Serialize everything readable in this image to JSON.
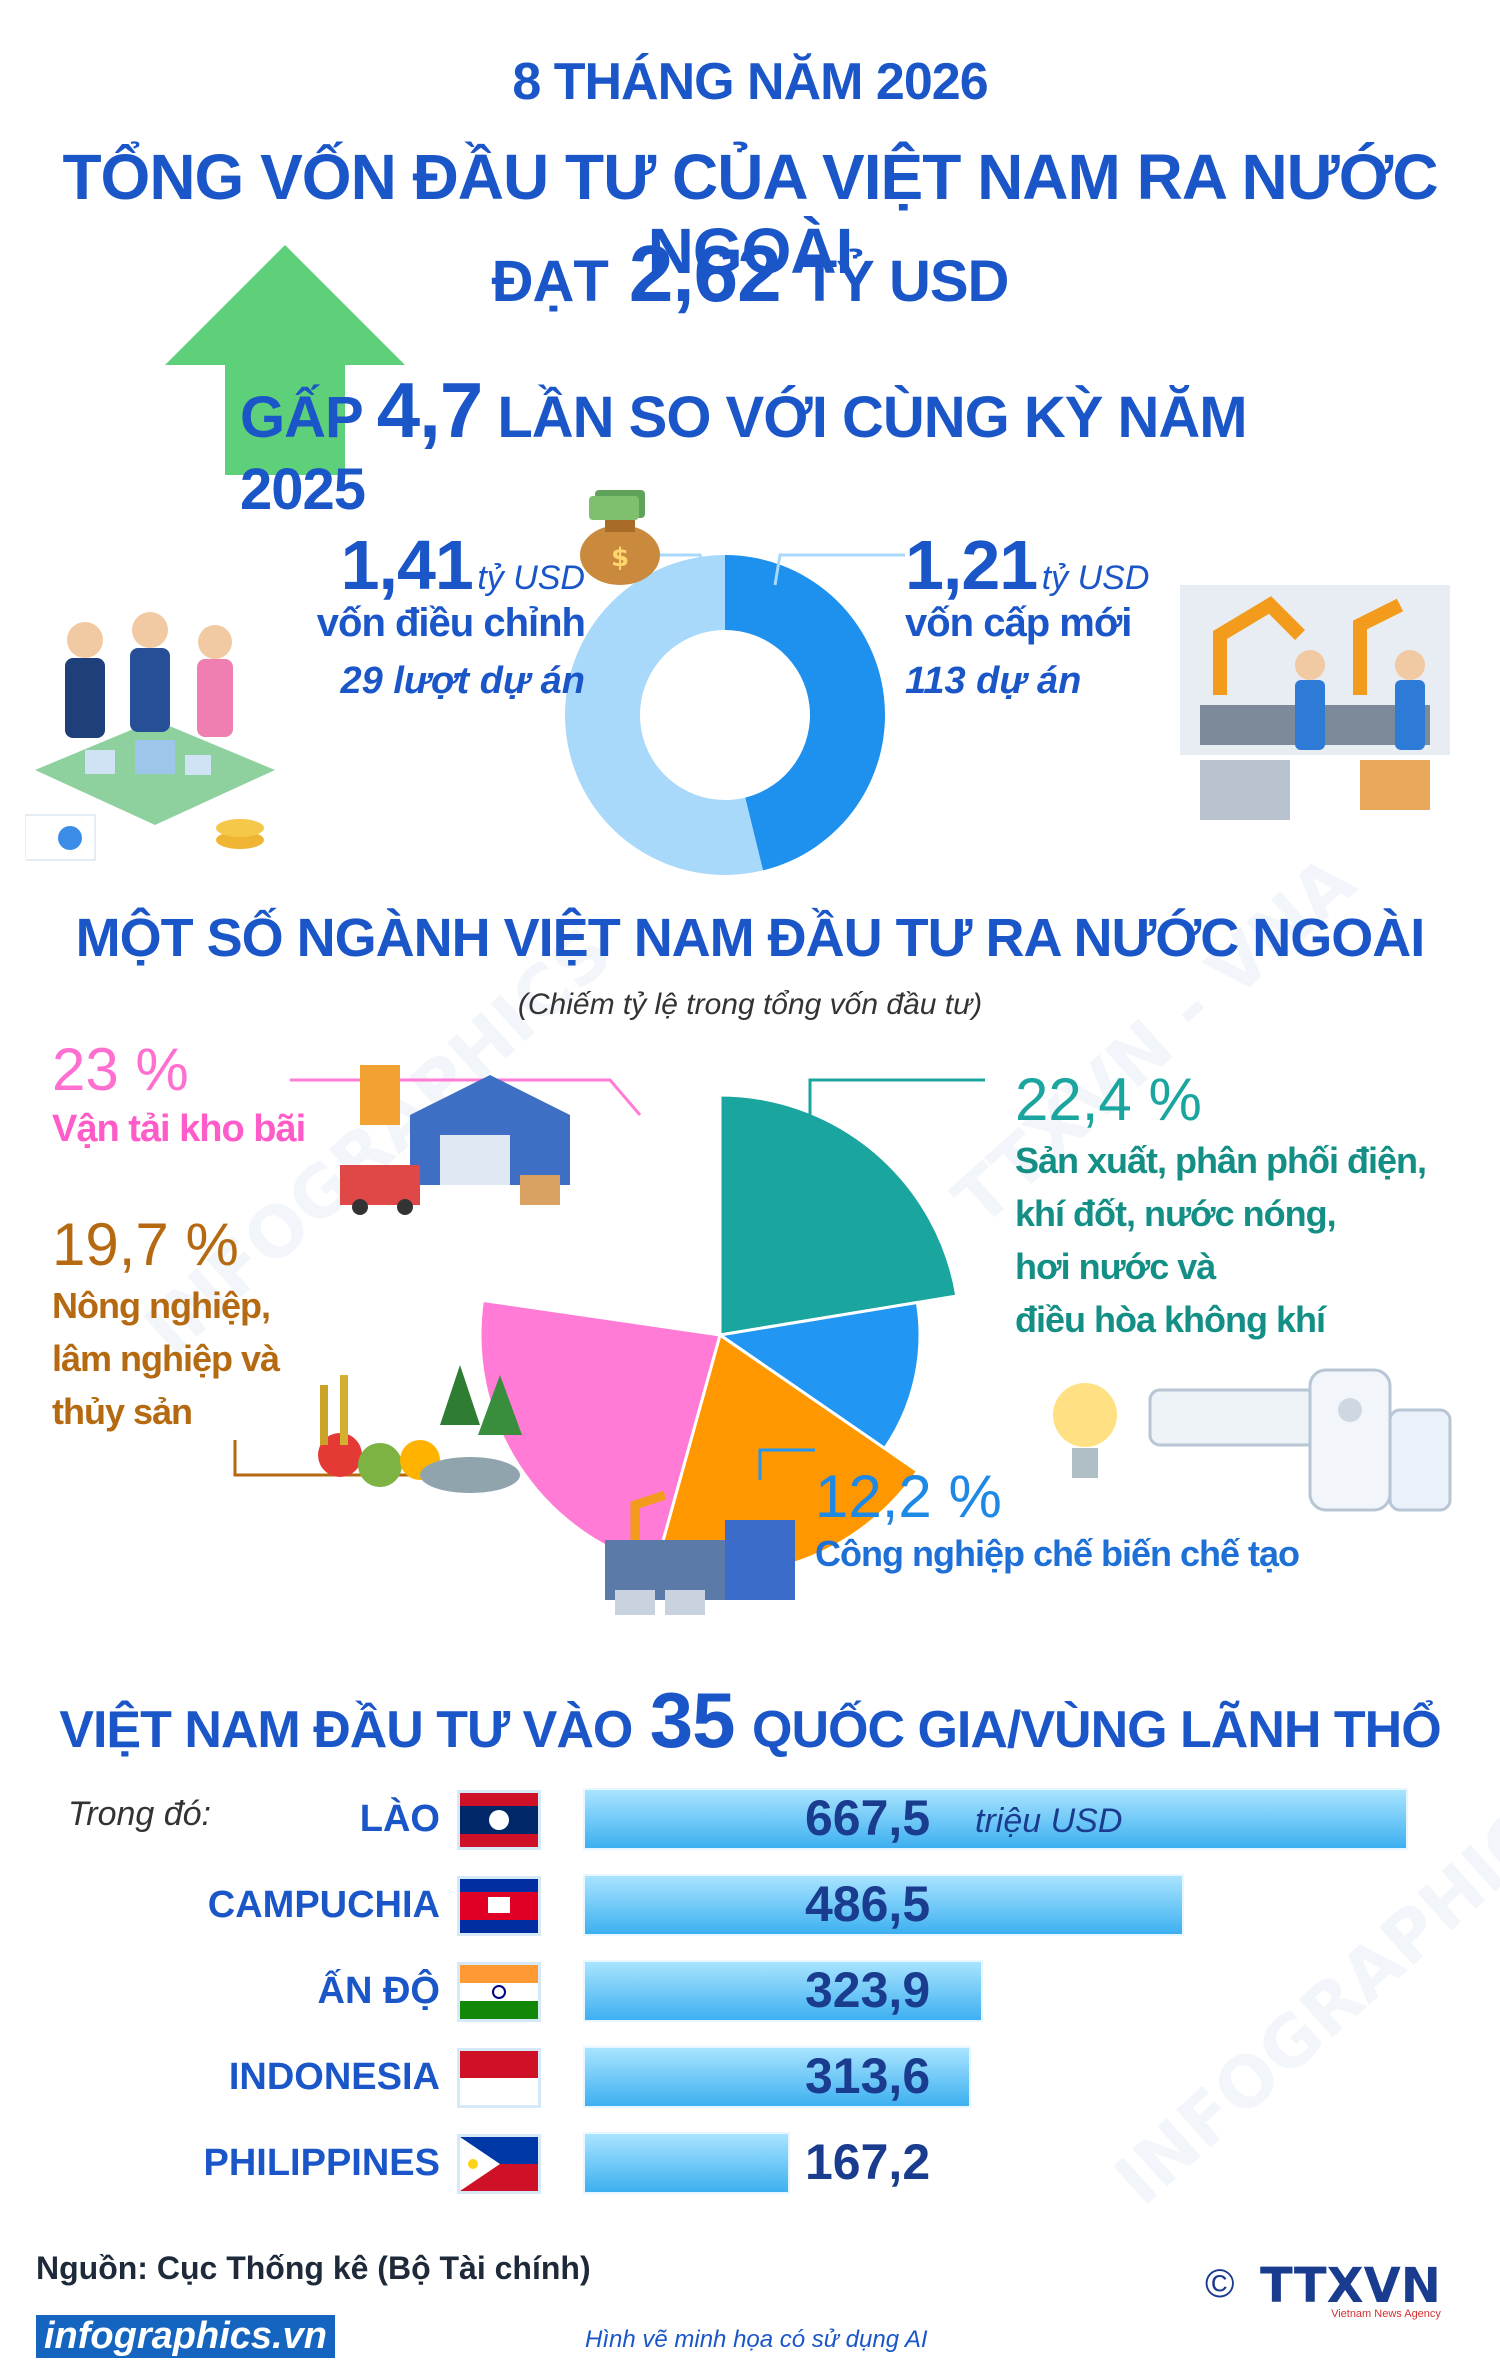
{
  "header": {
    "period": "8 THÁNG NĂM 2026",
    "headline": "TỔNG VỐN ĐẦU TƯ CỦA VIỆT NAM RA NƯỚC NGOÀI",
    "reach_prefix": "ĐẠT",
    "reach_value": "2,62",
    "reach_unit": "TỶ USD",
    "compare_prefix": "GẤP",
    "compare_value": "4,7",
    "compare_suffix": "LẦN SO VỚI CÙNG KỲ NĂM 2025"
  },
  "capital": {
    "left": {
      "value": "1,41",
      "unit": "tỷ USD",
      "label": "vốn điều chỉnh",
      "detail": "29 lượt dự án"
    },
    "right": {
      "value": "1,21",
      "unit": "tỷ USD",
      "label": "vốn cấp mới",
      "detail": "113 dự án"
    }
  },
  "sectors": {
    "title": "MỘT SỐ NGÀNH VIỆT NAM ĐẦU TƯ RA NƯỚC NGOÀI",
    "subtitle": "(Chiếm tỷ lệ trong tổng vốn đầu tư)",
    "items": [
      {
        "pct": "23 %",
        "label": "Vận tải kho bãi"
      },
      {
        "pct": "19,7 %",
        "label_lines": [
          "Nông nghiệp,",
          "lâm nghiệp và",
          "thủy sản"
        ]
      },
      {
        "pct": "22,4 %",
        "label_lines": [
          "Sản xuất, phân phối điện,",
          "khí đốt, nước nóng,",
          "hơi nước và",
          "điều hòa không khí"
        ]
      },
      {
        "pct": "12,2 %",
        "label": "Công nghiệp chế biến chế tạo"
      }
    ]
  },
  "countries_section": {
    "title_prefix": "VIỆT NAM ĐẦU TƯ VÀO",
    "title_number": "35",
    "title_suffix": "QUỐC GIA/VÙNG LÃNH THỔ",
    "among": "Trong đó:",
    "unit": "triệu USD"
  },
  "footer": {
    "source": "Nguồn: Cục Thống kê (Bộ Tài chính)",
    "site": "infographics.vn",
    "ai_note": "Hình vẽ minh họa có sử dụng AI",
    "copyright": "©",
    "agency": "TTXVN",
    "agency_sub": "Vietnam News Agency"
  },
  "chart_data": [
    {
      "type": "pie",
      "style": "donut",
      "categories": [
        "vốn cấp mới",
        "vốn điều chỉnh"
      ],
      "values": [
        1.21,
        1.41
      ],
      "colors": [
        "#1e90ee",
        "#a8d8fa"
      ]
    },
    {
      "type": "pie",
      "categories": [
        "Sản xuất, phân phối điện, khí đốt, nước nóng, hơi nước và điều hòa không khí",
        "Công nghiệp chế biến chế tạo",
        "Nông nghiệp, lâm nghiệp và thủy sản",
        "Vận tải kho bãi"
      ],
      "values": [
        22.4,
        12.2,
        19.7,
        23
      ],
      "colors": [
        "#1aa59e",
        "#2196f3",
        "#ff9800",
        "#ff7bd5"
      ]
    },
    {
      "type": "bar",
      "orientation": "horizontal",
      "categories": [
        "LÀO",
        "CAMPUCHIA",
        "ẤN ĐỘ",
        "INDONESIA",
        "PHILIPPINES"
      ],
      "values": [
        667.5,
        486.5,
        323.9,
        313.6,
        167.2
      ],
      "value_labels": [
        "667,5",
        "486,5",
        "323,9",
        "313,6",
        "167,2"
      ],
      "unit": "triệu USD"
    }
  ]
}
